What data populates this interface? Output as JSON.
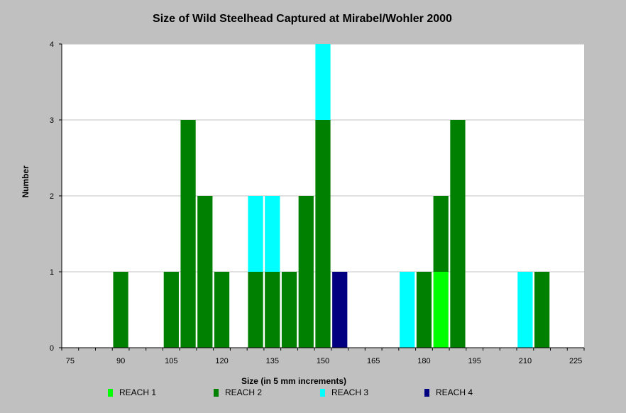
{
  "chart_data": {
    "type": "bar",
    "stacked": true,
    "title": "Size of Wild Steelhead Captured at Mirabel/Wohler 2000",
    "xlabel": "Size (in 5 mm increments)",
    "ylabel": "Number",
    "xlim": [
      72.5,
      227.5
    ],
    "ylim": [
      0,
      4
    ],
    "x_ticks": [
      75,
      90,
      105,
      120,
      135,
      150,
      165,
      180,
      195,
      210,
      225
    ],
    "y_ticks": [
      0,
      1,
      2,
      3,
      4
    ],
    "grid": true,
    "legend_position": "bottom",
    "categories": [
      75,
      80,
      85,
      90,
      95,
      100,
      105,
      110,
      115,
      120,
      125,
      130,
      135,
      140,
      145,
      150,
      155,
      160,
      165,
      170,
      175,
      180,
      185,
      190,
      195,
      200,
      205,
      210,
      215,
      220,
      225
    ],
    "series": [
      {
        "name": "REACH 1",
        "color": "#00ff00",
        "values": [
          0,
          0,
          0,
          0,
          0,
          0,
          0,
          0,
          0,
          0,
          0,
          0,
          0,
          0,
          0,
          0,
          0,
          0,
          0,
          0,
          0,
          0,
          1,
          0,
          0,
          0,
          0,
          0,
          0,
          0,
          0
        ]
      },
      {
        "name": "REACH 2",
        "color": "#008000",
        "values": [
          0,
          0,
          0,
          1,
          0,
          0,
          1,
          3,
          2,
          1,
          0,
          1,
          1,
          1,
          2,
          3,
          0,
          0,
          0,
          0,
          0,
          1,
          1,
          3,
          0,
          0,
          0,
          0,
          1,
          0,
          0
        ]
      },
      {
        "name": "REACH 3",
        "color": "#00ffff",
        "values": [
          0,
          0,
          0,
          0,
          0,
          0,
          0,
          0,
          0,
          0,
          0,
          1,
          1,
          0,
          0,
          1,
          0,
          0,
          0,
          0,
          1,
          0,
          0,
          0,
          0,
          0,
          0,
          1,
          0,
          0,
          0
        ]
      },
      {
        "name": "REACH 4",
        "color": "#000080",
        "values": [
          0,
          0,
          0,
          0,
          0,
          0,
          0,
          0,
          0,
          0,
          0,
          0,
          0,
          0,
          0,
          0,
          1,
          0,
          0,
          0,
          0,
          0,
          0,
          0,
          0,
          0,
          0,
          0,
          0,
          0,
          0
        ]
      }
    ]
  }
}
